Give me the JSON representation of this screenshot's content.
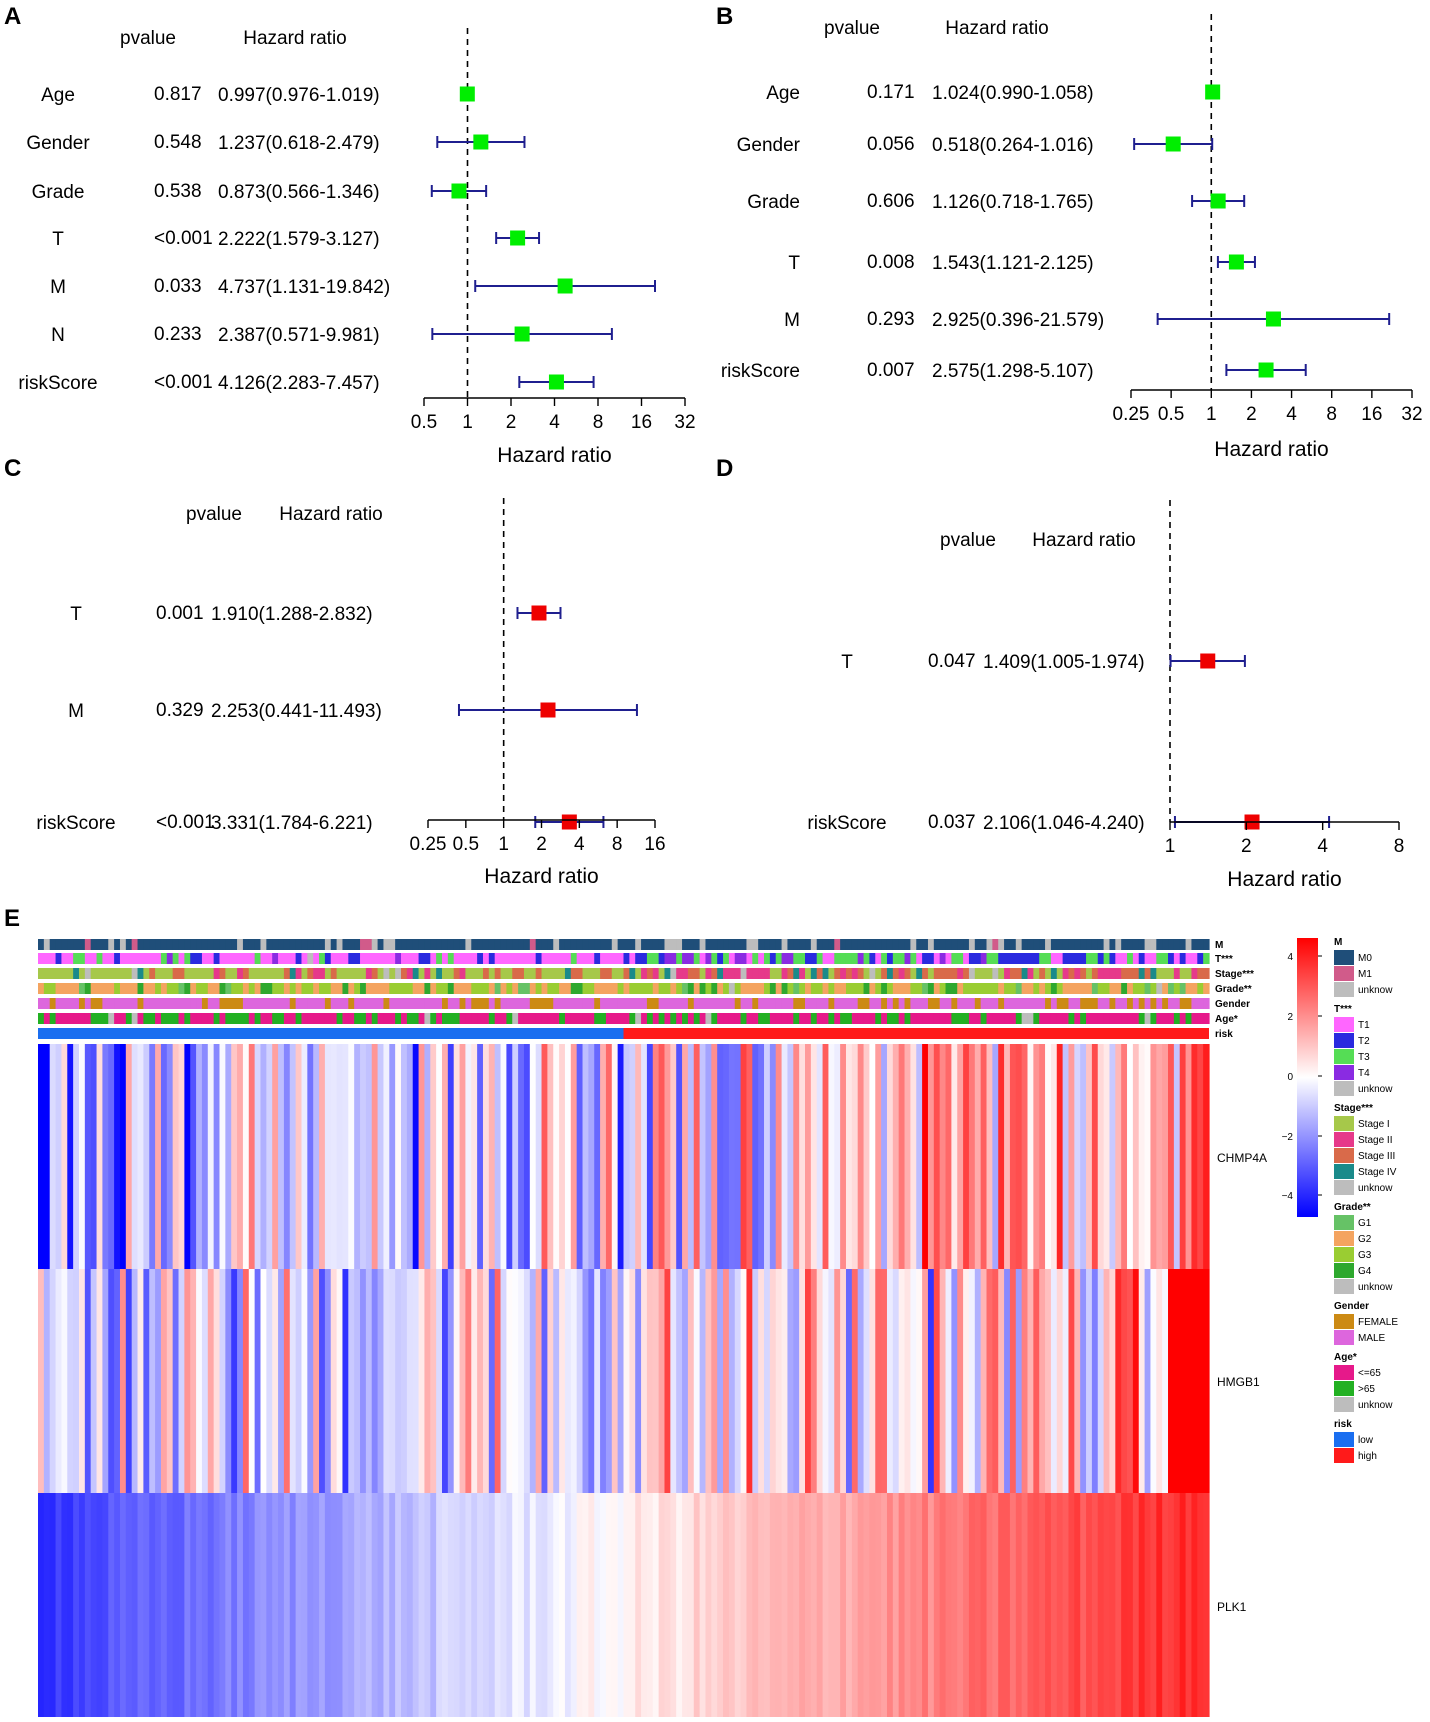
{
  "chart_data": [
    {
      "type": "forest",
      "panel": "A",
      "header_pvalue": "pvalue",
      "header_hr": "Hazard ratio",
      "xlabel": "Hazard ratio",
      "scale": "log2",
      "xlim": [
        0.5,
        32
      ],
      "ticks": [
        "0.5",
        "1",
        "2",
        "4",
        "8",
        "16",
        "32"
      ],
      "tick_values": [
        0.5,
        1,
        2,
        4,
        8,
        16,
        32
      ],
      "marker_color": "#00ee00",
      "rows": [
        {
          "label": "Age",
          "pvalue": "0.817",
          "hr_text": "0.997(0.976-1.019)",
          "hr": 0.997,
          "lo": 0.976,
          "hi": 1.019
        },
        {
          "label": "Gender",
          "pvalue": "0.548",
          "hr_text": "1.237(0.618-2.479)",
          "hr": 1.237,
          "lo": 0.618,
          "hi": 2.479
        },
        {
          "label": "Grade",
          "pvalue": "0.538",
          "hr_text": "0.873(0.566-1.346)",
          "hr": 0.873,
          "lo": 0.566,
          "hi": 1.346
        },
        {
          "label": "T",
          "pvalue": "<0.001",
          "hr_text": "2.222(1.579-3.127)",
          "hr": 2.222,
          "lo": 1.579,
          "hi": 3.127
        },
        {
          "label": "M",
          "pvalue": "0.033",
          "hr_text": "4.737(1.131-19.842)",
          "hr": 4.737,
          "lo": 1.131,
          "hi": 19.842
        },
        {
          "label": "N",
          "pvalue": "0.233",
          "hr_text": "2.387(0.571-9.981)",
          "hr": 2.387,
          "lo": 0.571,
          "hi": 9.981
        },
        {
          "label": "riskScore",
          "pvalue": "<0.001",
          "hr_text": "4.126(2.283-7.457)",
          "hr": 4.126,
          "lo": 2.283,
          "hi": 7.457
        }
      ]
    },
    {
      "type": "forest",
      "panel": "B",
      "header_pvalue": "pvalue",
      "header_hr": "Hazard ratio",
      "xlabel": "Hazard ratio",
      "scale": "log2",
      "xlim": [
        0.25,
        32
      ],
      "ticks": [
        "0.25",
        "0.5",
        "1",
        "2",
        "4",
        "8",
        "16",
        "32"
      ],
      "tick_values": [
        0.25,
        0.5,
        1,
        2,
        4,
        8,
        16,
        32
      ],
      "marker_color": "#00ee00",
      "rows": [
        {
          "label": "Age",
          "pvalue": "0.171",
          "hr_text": "1.024(0.990-1.058)",
          "hr": 1.024,
          "lo": 0.99,
          "hi": 1.058
        },
        {
          "label": "Gender",
          "pvalue": "0.056",
          "hr_text": "0.518(0.264-1.016)",
          "hr": 0.518,
          "lo": 0.264,
          "hi": 1.016
        },
        {
          "label": "Grade",
          "pvalue": "0.606",
          "hr_text": "1.126(0.718-1.765)",
          "hr": 1.126,
          "lo": 0.718,
          "hi": 1.765
        },
        {
          "label": "T",
          "pvalue": "0.008",
          "hr_text": "1.543(1.121-2.125)",
          "hr": 1.543,
          "lo": 1.121,
          "hi": 2.125
        },
        {
          "label": "M",
          "pvalue": "0.293",
          "hr_text": "2.925(0.396-21.579)",
          "hr": 2.925,
          "lo": 0.396,
          "hi": 21.579
        },
        {
          "label": "riskScore",
          "pvalue": "0.007",
          "hr_text": "2.575(1.298-5.107)",
          "hr": 2.575,
          "lo": 1.298,
          "hi": 5.107
        }
      ]
    },
    {
      "type": "forest",
      "panel": "C",
      "header_pvalue": "pvalue",
      "header_hr": "Hazard ratio",
      "xlabel": "Hazard ratio",
      "scale": "log2",
      "xlim": [
        0.25,
        16
      ],
      "ticks": [
        "0.25",
        "0.5",
        "1",
        "2",
        "4",
        "8",
        "16"
      ],
      "tick_values": [
        0.25,
        0.5,
        1,
        2,
        4,
        8,
        16
      ],
      "marker_color": "#ee0000",
      "rows": [
        {
          "label": "T",
          "pvalue": "0.001",
          "hr_text": "1.910(1.288-2.832)",
          "hr": 1.91,
          "lo": 1.288,
          "hi": 2.832
        },
        {
          "label": "M",
          "pvalue": "0.329",
          "hr_text": "2.253(0.441-11.493)",
          "hr": 2.253,
          "lo": 0.441,
          "hi": 11.493
        },
        {
          "label": "riskScore",
          "pvalue": "<0.001",
          "hr_text": "3.331(1.784-6.221)",
          "hr": 3.331,
          "lo": 1.784,
          "hi": 6.221
        }
      ]
    },
    {
      "type": "forest",
      "panel": "D",
      "header_pvalue": "pvalue",
      "header_hr": "Hazard ratio",
      "xlabel": "Hazard ratio",
      "scale": "log2",
      "xlim": [
        1,
        8
      ],
      "ticks": [
        "1",
        "2",
        "4",
        "8"
      ],
      "tick_values": [
        1,
        2,
        4,
        8
      ],
      "marker_color": "#ee0000",
      "rows": [
        {
          "label": "T",
          "pvalue": "0.047",
          "hr_text": "1.409(1.005-1.974)",
          "hr": 1.409,
          "lo": 1.005,
          "hi": 1.974
        },
        {
          "label": "riskScore",
          "pvalue": "0.037",
          "hr_text": "2.106(1.046-4.240)",
          "hr": 2.106,
          "lo": 1.046,
          "hi": 4.24
        }
      ]
    },
    {
      "type": "heatmap",
      "panel": "E",
      "n_samples": 200,
      "genes": [
        "CHMP4A",
        "HMGB1",
        "PLK1"
      ],
      "annotation_tracks": [
        "M",
        "T***",
        "Stage***",
        "Grade**",
        "Gender",
        "Age*",
        "risk"
      ],
      "risk_split": {
        "low_count": 100,
        "high_count": 100
      },
      "colorbar": {
        "ticks": [
          "4",
          "2",
          "0",
          "−2",
          "−4"
        ],
        "range": [
          -4,
          4
        ],
        "low_color": "#0000ff",
        "mid_color": "#ffffff",
        "high_color": "#ff0000"
      },
      "legend": [
        {
          "title": "M",
          "items": [
            {
              "label": "M0",
              "color": "#1f4e79"
            },
            {
              "label": "M1",
              "color": "#d15b8a"
            },
            {
              "label": "unknow",
              "color": "#bdbdbd"
            }
          ]
        },
        {
          "title": "T***",
          "items": [
            {
              "label": "T1",
              "color": "#ff66ff"
            },
            {
              "label": "T2",
              "color": "#2a2adf"
            },
            {
              "label": "T3",
              "color": "#55dd55"
            },
            {
              "label": "T4",
              "color": "#8a2be2"
            },
            {
              "label": "unknow",
              "color": "#bdbdbd"
            }
          ]
        },
        {
          "title": "Stage***",
          "items": [
            {
              "label": "Stage I",
              "color": "#a6c84a"
            },
            {
              "label": "Stage II",
              "color": "#e6398a"
            },
            {
              "label": "Stage III",
              "color": "#d96a4a"
            },
            {
              "label": "Stage IV",
              "color": "#1a8a8a"
            },
            {
              "label": "unknow",
              "color": "#bdbdbd"
            }
          ]
        },
        {
          "title": "Grade**",
          "items": [
            {
              "label": "G1",
              "color": "#66c266"
            },
            {
              "label": "G2",
              "color": "#f4a460"
            },
            {
              "label": "G3",
              "color": "#9acd32"
            },
            {
              "label": "G4",
              "color": "#2ea82e"
            },
            {
              "label": "unknow",
              "color": "#bdbdbd"
            }
          ]
        },
        {
          "title": "Gender",
          "items": [
            {
              "label": "FEMALE",
              "color": "#cc8a14"
            },
            {
              "label": "MALE",
              "color": "#dd66dd"
            }
          ]
        },
        {
          "title": "Age*",
          "items": [
            {
              "label": "<=65",
              "color": "#e6198a"
            },
            {
              "label": ">65",
              "color": "#22b022"
            },
            {
              "label": "unknow",
              "color": "#bdbdbd"
            }
          ]
        },
        {
          "title": "risk",
          "items": [
            {
              "label": "low",
              "color": "#1a6ef0"
            },
            {
              "label": "high",
              "color": "#ff1a1a"
            }
          ]
        }
      ]
    }
  ]
}
